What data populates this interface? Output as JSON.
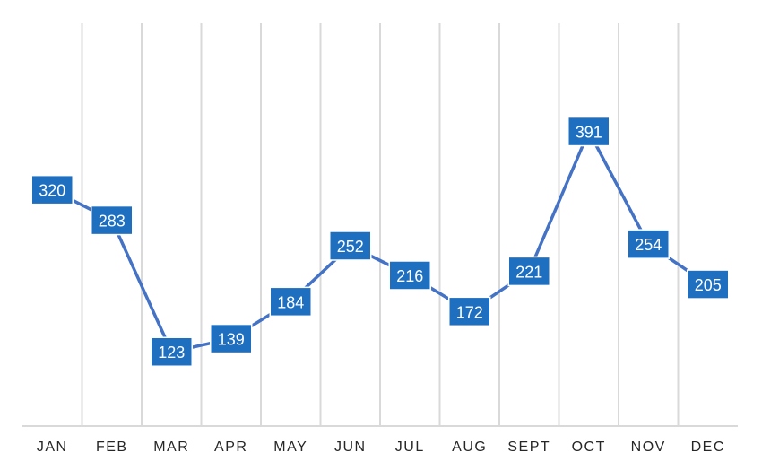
{
  "chart_data": {
    "type": "line",
    "categories": [
      "JAN",
      "FEB",
      "MAR",
      "APR",
      "MAY",
      "JUN",
      "JUL",
      "AUG",
      "SEPT",
      "OCT",
      "NOV",
      "DEC"
    ],
    "series": [
      {
        "values": [
          320,
          283,
          123,
          139,
          184,
          252,
          216,
          172,
          221,
          391,
          254,
          205
        ],
        "color": "#4472c4"
      }
    ],
    "data_labels": true,
    "data_label_color": "#1f6fc1",
    "gridlines": "vertical",
    "legend": "none",
    "title": "",
    "xlabel": "",
    "ylabel": ""
  }
}
